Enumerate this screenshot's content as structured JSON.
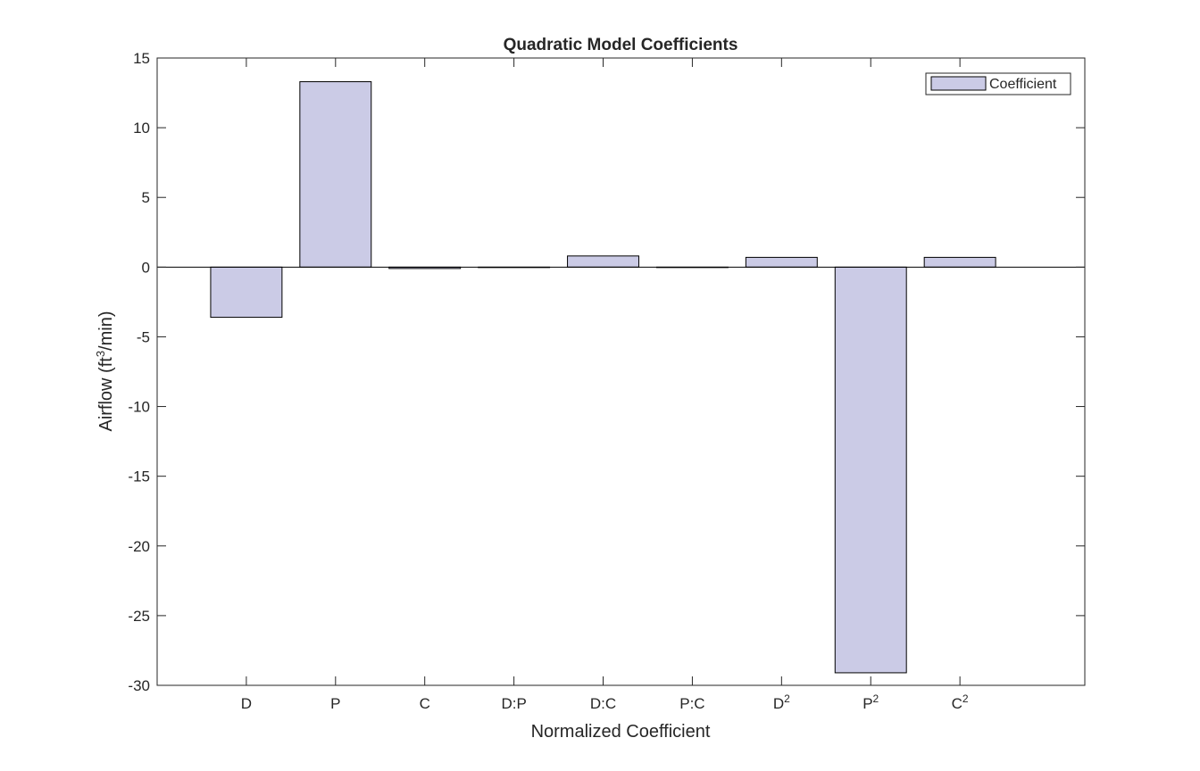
{
  "chart_data": {
    "type": "bar",
    "title": "Quadratic Model Coefficients",
    "xlabel": "Normalized Coefficient",
    "ylabel": {
      "pre": "Airflow  (ft",
      "sup": "3",
      "post": "/min)"
    },
    "categories": [
      {
        "base": "D",
        "sup": ""
      },
      {
        "base": "P",
        "sup": ""
      },
      {
        "base": "C",
        "sup": ""
      },
      {
        "base": "D:P",
        "sup": ""
      },
      {
        "base": "D:C",
        "sup": ""
      },
      {
        "base": "P:C",
        "sup": ""
      },
      {
        "base": "D",
        "sup": "2"
      },
      {
        "base": "P",
        "sup": "2"
      },
      {
        "base": "C",
        "sup": "2"
      }
    ],
    "series": [
      {
        "name": "Coefficient",
        "color": "#cbcbe6",
        "values": [
          -3.6,
          13.3,
          -0.1,
          0.0,
          0.8,
          0.0,
          0.7,
          -29.1,
          0.7
        ]
      }
    ],
    "ylim": [
      -30,
      15
    ],
    "yticks": [
      -30,
      -25,
      -20,
      -15,
      -10,
      -5,
      0,
      5,
      10,
      15
    ],
    "ytick_labels": [
      "-30",
      "-25",
      "-20",
      "-15",
      "-10",
      "-5",
      "0",
      "5",
      "10",
      "15"
    ],
    "xlim": [
      0,
      10.4
    ],
    "grid": false,
    "legend": "top-right",
    "baseline_at_zero": true
  }
}
